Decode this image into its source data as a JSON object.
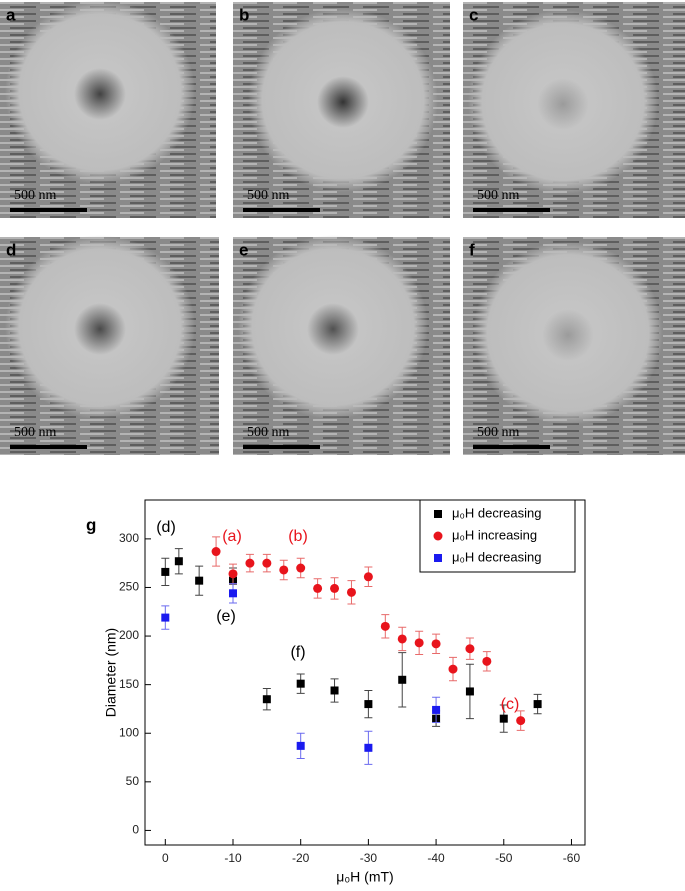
{
  "panels": [
    {
      "label": "a",
      "scale_bar": "500 nm"
    },
    {
      "label": "b",
      "scale_bar": "500 nm"
    },
    {
      "label": "c",
      "scale_bar": "500 nm"
    },
    {
      "label": "d",
      "scale_bar": "500 nm"
    },
    {
      "label": "e",
      "scale_bar": "500 nm"
    },
    {
      "label": "f",
      "scale_bar": "500 nm"
    }
  ],
  "chart_data": {
    "type": "scatter",
    "panel_label": "g",
    "x_label": "μ₀H (mT)",
    "y_label": "Diameter (nm)",
    "xlim": [
      3,
      -62
    ],
    "xticks": [
      0,
      -10,
      -20,
      -30,
      -40,
      -50,
      -60
    ],
    "ylim": [
      -15,
      340
    ],
    "yticks": [
      0,
      50,
      100,
      150,
      200,
      250,
      300
    ],
    "legend": "upper right",
    "series": [
      {
        "name": "μ₀H decreasing",
        "color": "#000000",
        "marker": "square",
        "x": [
          0,
          -2,
          -5,
          -10,
          -15,
          -20,
          -25,
          -30,
          -35,
          -40,
          -45,
          -50,
          -55
        ],
        "values": [
          266,
          277,
          257,
          257,
          135,
          151,
          144,
          130,
          155,
          115,
          143,
          115,
          130
        ],
        "errors": [
          14,
          13,
          15,
          13,
          11,
          10,
          12,
          14,
          28,
          8,
          28,
          14,
          10
        ]
      },
      {
        "name": "μ₀H increasing",
        "color": "#e8141c",
        "marker": "circle",
        "x": [
          -7.5,
          -10,
          -12.5,
          -15,
          -17.5,
          -20,
          -22.5,
          -25,
          -27.5,
          -30,
          -32.5,
          -35,
          -37.5,
          -40,
          -42.5,
          -45,
          -47.5,
          -52.5
        ],
        "values": [
          287,
          264,
          275,
          275,
          268,
          270,
          249,
          249,
          245,
          261,
          210,
          197,
          193,
          192,
          166,
          187,
          174,
          113
        ],
        "errors": [
          15,
          10,
          9,
          9,
          10,
          10,
          10,
          11,
          12,
          10,
          12,
          12,
          12,
          10,
          12,
          11,
          10,
          10
        ]
      },
      {
        "name": "μ₀H decreasing",
        "color": "#1a1aef",
        "marker": "square",
        "x": [
          0,
          -10,
          -20,
          -30,
          -40
        ],
        "values": [
          219,
          244,
          87,
          85,
          124
        ],
        "errors": [
          12,
          10,
          13,
          17,
          13
        ]
      }
    ],
    "annotations": [
      {
        "text": "(d)",
        "color": "#000000"
      },
      {
        "text": "(a)",
        "color": "#e8141c"
      },
      {
        "text": "(b)",
        "color": "#e8141c"
      },
      {
        "text": "(e)",
        "color": "#000000"
      },
      {
        "text": "(f)",
        "color": "#000000"
      },
      {
        "text": "(c)",
        "color": "#e8141c"
      }
    ]
  }
}
